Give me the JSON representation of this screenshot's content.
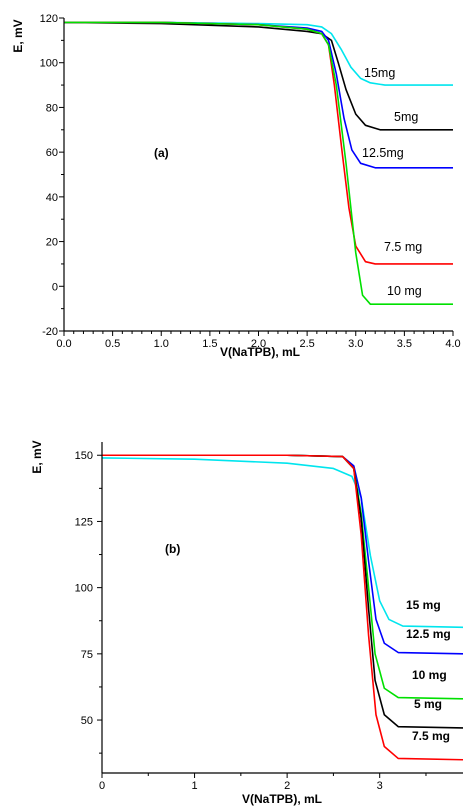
{
  "chart_data": [
    {
      "type": "line",
      "panel_label": "(a)",
      "xlabel": "V(NaTPB), mL",
      "ylabel": "E, mV",
      "xlim": [
        0,
        4
      ],
      "ylim": [
        -20,
        120
      ],
      "xticks": [
        "0.0",
        "0.5",
        "1.0",
        "1.5",
        "2.0",
        "2.5",
        "3.0",
        "3.5",
        "4.0"
      ],
      "yticks": [
        "-20",
        "0",
        "20",
        "40",
        "60",
        "80",
        "100",
        "120"
      ],
      "grid": false,
      "series": [
        {
          "name": "15mg",
          "color": "#00e5ee",
          "points": [
            [
              0,
              118
            ],
            [
              1.0,
              118
            ],
            [
              2.0,
              117.5
            ],
            [
              2.5,
              117
            ],
            [
              2.65,
              116
            ],
            [
              2.75,
              113
            ],
            [
              2.85,
              106
            ],
            [
              2.95,
              98
            ],
            [
              3.05,
              93
            ],
            [
              3.15,
              91
            ],
            [
              3.3,
              90
            ],
            [
              4.0,
              90
            ]
          ]
        },
        {
          "name": "5mg",
          "color": "#000000",
          "points": [
            [
              0,
              118
            ],
            [
              1.0,
              117.5
            ],
            [
              2.0,
              116
            ],
            [
              2.5,
              114
            ],
            [
              2.65,
              113
            ],
            [
              2.75,
              110
            ],
            [
              2.82,
              100
            ],
            [
              2.9,
              88
            ],
            [
              3.0,
              77
            ],
            [
              3.1,
              72
            ],
            [
              3.25,
              70
            ],
            [
              4.0,
              70
            ]
          ]
        },
        {
          "name": "12.5mg",
          "color": "#0000ff",
          "points": [
            [
              0,
              118
            ],
            [
              1.0,
              118
            ],
            [
              2.0,
              117
            ],
            [
              2.5,
              115.5
            ],
            [
              2.65,
              114
            ],
            [
              2.72,
              110
            ],
            [
              2.8,
              95
            ],
            [
              2.88,
              75
            ],
            [
              2.96,
              61
            ],
            [
              3.05,
              55
            ],
            [
              3.2,
              53
            ],
            [
              4.0,
              53
            ]
          ]
        },
        {
          "name": "7.5 mg",
          "color": "#ff0000",
          "points": [
            [
              0,
              118
            ],
            [
              1.0,
              118
            ],
            [
              2.0,
              117
            ],
            [
              2.5,
              115
            ],
            [
              2.65,
              113
            ],
            [
              2.72,
              108
            ],
            [
              2.78,
              90
            ],
            [
              2.86,
              60
            ],
            [
              2.93,
              35
            ],
            [
              3.0,
              18
            ],
            [
              3.1,
              11
            ],
            [
              3.2,
              10
            ],
            [
              4.0,
              10
            ]
          ]
        },
        {
          "name": "10 mg",
          "color": "#00e000",
          "points": [
            [
              0,
              118
            ],
            [
              1.0,
              118
            ],
            [
              2.0,
              117
            ],
            [
              2.5,
              115
            ],
            [
              2.65,
              113
            ],
            [
              2.72,
              108
            ],
            [
              2.8,
              90
            ],
            [
              2.9,
              55
            ],
            [
              3.0,
              15
            ],
            [
              3.07,
              -4
            ],
            [
              3.15,
              -8
            ],
            [
              4.0,
              -8
            ]
          ]
        }
      ]
    },
    {
      "type": "line",
      "panel_label": "(b)",
      "xlabel": "V(NaTPB), mL",
      "ylabel": "E, mV",
      "xlim": [
        0,
        3.9
      ],
      "ylim": [
        30,
        155
      ],
      "xticks": [
        "0",
        "1",
        "2",
        "3"
      ],
      "yticks": [
        "50",
        "75",
        "100",
        "125",
        "150"
      ],
      "grid": false,
      "series": [
        {
          "name": "15 mg",
          "color": "#00e5ee",
          "points": [
            [
              0,
              149
            ],
            [
              1.0,
              148.5
            ],
            [
              2.0,
              147
            ],
            [
              2.5,
              145
            ],
            [
              2.7,
              142
            ],
            [
              2.8,
              134
            ],
            [
              2.9,
              112
            ],
            [
              3.0,
              95
            ],
            [
              3.1,
              88
            ],
            [
              3.25,
              85.5
            ],
            [
              3.9,
              85
            ]
          ]
        },
        {
          "name": "12.5 mg",
          "color": "#0000ff",
          "points": [
            [
              0,
              150
            ],
            [
              1.0,
              150
            ],
            [
              2.0,
              150
            ],
            [
              2.6,
              149.5
            ],
            [
              2.72,
              146
            ],
            [
              2.8,
              134
            ],
            [
              2.88,
              110
            ],
            [
              2.96,
              88
            ],
            [
              3.05,
              79
            ],
            [
              3.2,
              75.5
            ],
            [
              3.9,
              75
            ]
          ]
        },
        {
          "name": "10 mg",
          "color": "#00e000",
          "points": [
            [
              0,
              150
            ],
            [
              1.0,
              150
            ],
            [
              2.0,
              150
            ],
            [
              2.6,
              149.5
            ],
            [
              2.72,
              145
            ],
            [
              2.8,
              128
            ],
            [
              2.88,
              100
            ],
            [
              2.95,
              75
            ],
            [
              3.05,
              62
            ],
            [
              3.2,
              58.5
            ],
            [
              3.9,
              58
            ]
          ]
        },
        {
          "name": "5 mg",
          "color": "#000000",
          "points": [
            [
              0,
              150
            ],
            [
              1.0,
              150
            ],
            [
              2.0,
              150
            ],
            [
              2.6,
              149.5
            ],
            [
              2.72,
              145
            ],
            [
              2.8,
              126
            ],
            [
              2.88,
              92
            ],
            [
              2.95,
              65
            ],
            [
              3.05,
              52
            ],
            [
              3.2,
              47.5
            ],
            [
              3.9,
              47
            ]
          ]
        },
        {
          "name": "7.5 mg",
          "color": "#ff0000",
          "points": [
            [
              0,
              150
            ],
            [
              1.0,
              150
            ],
            [
              2.0,
              150
            ],
            [
              2.6,
              149.5
            ],
            [
              2.72,
              145
            ],
            [
              2.8,
              120
            ],
            [
              2.88,
              82
            ],
            [
              2.96,
              52
            ],
            [
              3.05,
              40
            ],
            [
              3.2,
              35.5
            ],
            [
              3.9,
              35
            ]
          ]
        }
      ]
    }
  ]
}
